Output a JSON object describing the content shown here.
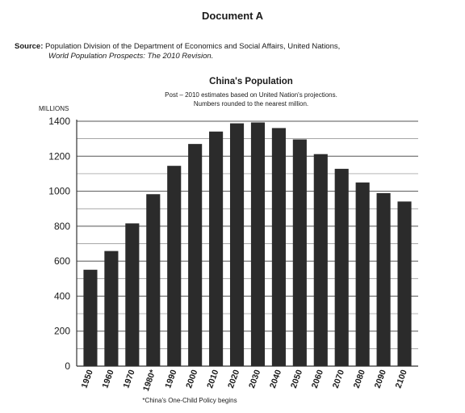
{
  "document": {
    "title": "Document A",
    "source_label": "Source:",
    "source_text": "Population Division of the Department of Economics and Social Affairs, United Nations,",
    "source_citation": "World Population Prospects: The 2010 Revision."
  },
  "chart_data": {
    "type": "bar",
    "title": "China's Population",
    "subtitle_line1": "Post – 2010 estimates based on United Nation's projections.",
    "subtitle_line2": "Numbers rounded to the nearest million.",
    "ylabel": "MILLIONS",
    "xlabel": "",
    "categories": [
      "1950",
      "1960",
      "1970",
      "1980*",
      "1990",
      "2000",
      "2010",
      "2020",
      "2030",
      "2040",
      "2050",
      "2060",
      "2070",
      "2080",
      "2090",
      "2100"
    ],
    "values": [
      551,
      658,
      816,
      983,
      1145,
      1270,
      1341,
      1388,
      1393,
      1361,
      1296,
      1212,
      1128,
      1050,
      989,
      941
    ],
    "ylim": [
      0,
      1400
    ],
    "yticks": [
      0,
      200,
      400,
      600,
      800,
      1000,
      1200,
      1400
    ],
    "grid": true,
    "bar_color": "#2b2b2b",
    "footnote": "*China's One-Child Policy begins"
  }
}
